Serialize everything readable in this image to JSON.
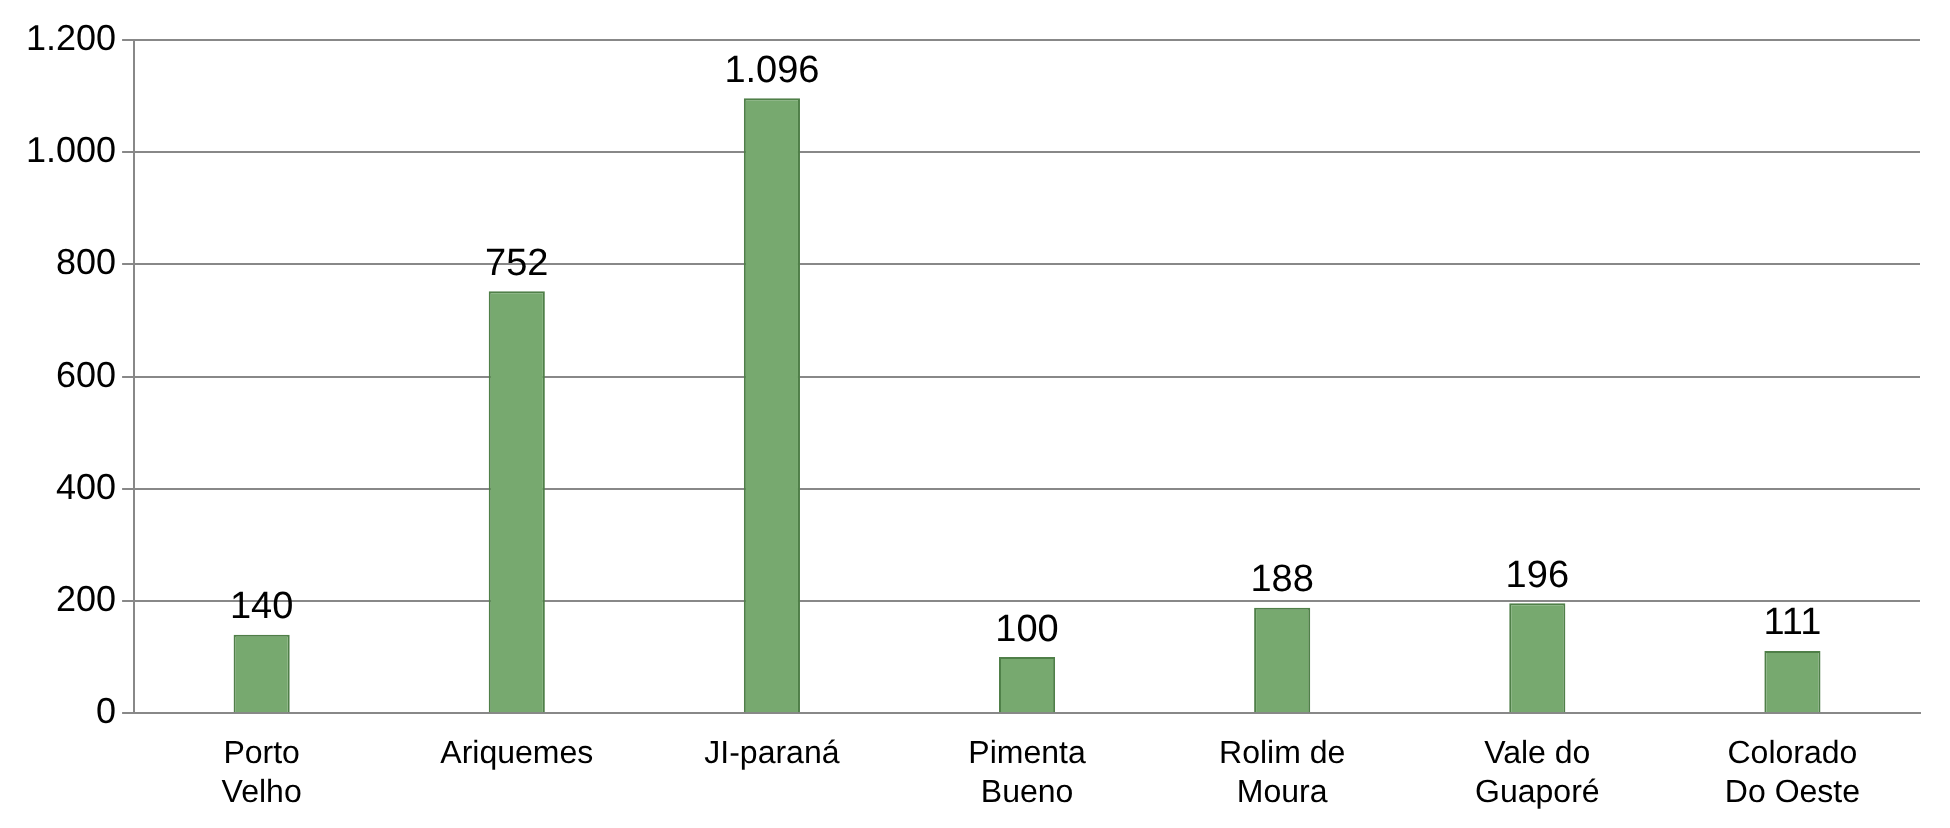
{
  "chart_data": {
    "type": "bar",
    "categories": [
      "Porto Velho",
      "Ariquemes",
      "JI-paraná",
      "Pimenta Bueno",
      "Rolim de Moura",
      "Vale do Guaporé",
      "Colorado Do Oeste"
    ],
    "values": [
      140,
      752,
      1096,
      100,
      188,
      196,
      111
    ],
    "value_labels": [
      "140",
      "752",
      "1.096",
      "100",
      "188",
      "196",
      "111"
    ],
    "color": "#77a96f",
    "ylim": [
      0,
      1200
    ],
    "yticks": [
      0,
      {
        "value": 200,
        "label": "200"
      },
      {
        "value": 400,
        "label": "400"
      },
      {
        "value": 600,
        "label": "600"
      },
      {
        "value": 800,
        "label": "800"
      },
      {
        "value": 1000,
        "label": "1.000"
      },
      {
        "value": 1200,
        "label": "1.200"
      }
    ],
    "grid": "y"
  }
}
